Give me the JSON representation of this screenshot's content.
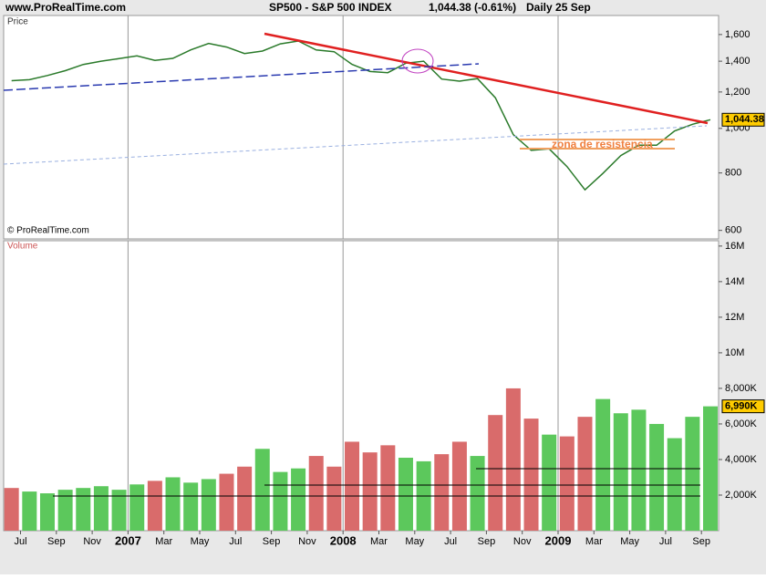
{
  "header": {
    "site": "www.ProRealTime.com",
    "symbol": "SP500 - S&P 500 INDEX",
    "quote": "1,044.38 (-0.61%)",
    "period": "Daily  25 Sep",
    "copyright": "© ProRealTime.com"
  },
  "chart_data": [
    {
      "type": "line",
      "label": "Price",
      "color": "#2a7a2a",
      "log_scale": true,
      "x": [
        "2006-06",
        "2006-07",
        "2006-08",
        "2006-09",
        "2006-10",
        "2006-11",
        "2006-12",
        "2007-01",
        "2007-02",
        "2007-03",
        "2007-04",
        "2007-05",
        "2007-06",
        "2007-07",
        "2007-08",
        "2007-09",
        "2007-10",
        "2007-11",
        "2007-12",
        "2008-01",
        "2008-02",
        "2008-03",
        "2008-04",
        "2008-05",
        "2008-06",
        "2008-07",
        "2008-08",
        "2008-09",
        "2008-10",
        "2008-11",
        "2008-12",
        "2009-01",
        "2009-02",
        "2009-03",
        "2009-04",
        "2009-05",
        "2009-06",
        "2009-07",
        "2009-08",
        "2009-09"
      ],
      "values": [
        1270,
        1276,
        1303,
        1335,
        1377,
        1400,
        1418,
        1438,
        1406,
        1420,
        1482,
        1530,
        1503,
        1455,
        1473,
        1527,
        1549,
        1481,
        1468,
        1378,
        1330,
        1322,
        1386,
        1400,
        1280,
        1267,
        1283,
        1166,
        969,
        896,
        903,
        826,
        735,
        798,
        873,
        919,
        919,
        987,
        1021,
        1044.38
      ],
      "ylim": [
        575,
        1760
      ],
      "yticks": [
        600,
        800,
        {
          "value": 1000,
          "label": "1,000"
        },
        {
          "value": 1200,
          "label": "1,200"
        },
        {
          "value": 1400,
          "label": "1,400"
        },
        {
          "value": 1600,
          "label": "1,600"
        }
      ],
      "last": {
        "value": 1044.38,
        "label": "1,044.38"
      },
      "annotation": "zona de resistencia"
    },
    {
      "type": "bar",
      "label": "Volume",
      "x": [
        "2006-06",
        "2006-07",
        "2006-08",
        "2006-09",
        "2006-10",
        "2006-11",
        "2006-12",
        "2007-01",
        "2007-02",
        "2007-03",
        "2007-04",
        "2007-05",
        "2007-06",
        "2007-07",
        "2007-08",
        "2007-09",
        "2007-10",
        "2007-11",
        "2007-12",
        "2008-01",
        "2008-02",
        "2008-03",
        "2008-04",
        "2008-05",
        "2008-06",
        "2008-07",
        "2008-08",
        "2008-09",
        "2008-10",
        "2008-11",
        "2008-12",
        "2009-01",
        "2009-02",
        "2009-03",
        "2009-04",
        "2009-05",
        "2009-06",
        "2009-07",
        "2009-08",
        "2009-09"
      ],
      "values": [
        2.4,
        2.2,
        2.1,
        2.3,
        2.4,
        2.5,
        2.3,
        2.6,
        2.8,
        3.0,
        2.7,
        2.9,
        3.2,
        3.6,
        4.6,
        3.3,
        3.5,
        4.2,
        3.6,
        5.0,
        4.4,
        4.8,
        4.1,
        3.9,
        4.3,
        5.0,
        4.2,
        6.5,
        8.0,
        6.3,
        5.4,
        5.3,
        6.4,
        7.4,
        6.6,
        6.8,
        6.0,
        5.2,
        6.4,
        6.99
      ],
      "colors": [
        "#d96b6b",
        "#5cc85c",
        "#5cc85c",
        "#5cc85c",
        "#5cc85c",
        "#5cc85c",
        "#5cc85c",
        "#5cc85c",
        "#d96b6b",
        "#5cc85c",
        "#5cc85c",
        "#5cc85c",
        "#d96b6b",
        "#d96b6b",
        "#5cc85c",
        "#5cc85c",
        "#5cc85c",
        "#d96b6b",
        "#d96b6b",
        "#d96b6b",
        "#d96b6b",
        "#d96b6b",
        "#5cc85c",
        "#5cc85c",
        "#d96b6b",
        "#d96b6b",
        "#5cc85c",
        "#d96b6b",
        "#d96b6b",
        "#d96b6b",
        "#5cc85c",
        "#d96b6b",
        "#d96b6b",
        "#5cc85c",
        "#5cc85c",
        "#5cc85c",
        "#5cc85c",
        "#5cc85c",
        "#5cc85c",
        "#5cc85c"
      ],
      "ylim": [
        0,
        16.3
      ],
      "yticks": [
        {
          "value": 2,
          "label": "2,000K"
        },
        {
          "value": 4,
          "label": "4,000K"
        },
        {
          "value": 6,
          "label": "6,000K"
        },
        {
          "value": 8,
          "label": "8,000K"
        },
        {
          "value": 10,
          "label": "10M"
        },
        {
          "value": 12,
          "label": "12M"
        },
        {
          "value": 14,
          "label": "14M"
        },
        {
          "value": 16,
          "label": "16M"
        }
      ],
      "last": {
        "value": 6.99,
        "label": "6,990K"
      },
      "xticks": [
        {
          "value": "2006-07",
          "label": "Jul"
        },
        {
          "value": "2006-09",
          "label": "Sep"
        },
        {
          "value": "2006-11",
          "label": "Nov"
        },
        {
          "value": "2007-01",
          "label": "2007"
        },
        {
          "value": "2007-03",
          "label": "Mar"
        },
        {
          "value": "2007-05",
          "label": "May"
        },
        {
          "value": "2007-07",
          "label": "Jul"
        },
        {
          "value": "2007-09",
          "label": "Sep"
        },
        {
          "value": "2007-11",
          "label": "Nov"
        },
        {
          "value": "2008-01",
          "label": "2008"
        },
        {
          "value": "2008-03",
          "label": "Mar"
        },
        {
          "value": "2008-05",
          "label": "May"
        },
        {
          "value": "2008-07",
          "label": "Jul"
        },
        {
          "value": "2008-09",
          "label": "Sep"
        },
        {
          "value": "2008-11",
          "label": "Nov"
        },
        {
          "value": "2009-01",
          "label": "2009"
        },
        {
          "value": "2009-03",
          "label": "Mar"
        },
        {
          "value": "2009-05",
          "label": "May"
        },
        {
          "value": "2009-07",
          "label": "Jul"
        },
        {
          "value": "2009-09",
          "label": "Sep"
        }
      ]
    }
  ]
}
